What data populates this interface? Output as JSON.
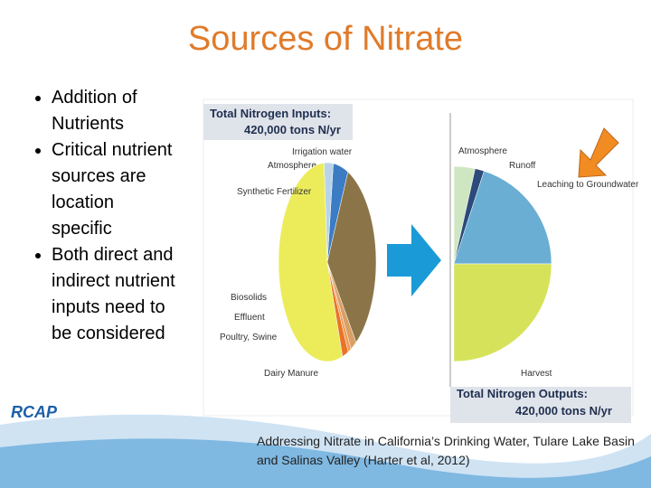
{
  "title": "Sources of Nitrate",
  "bullets": [
    "Addition of Nutrients",
    "Critical nutrient sources are location specific",
    "Both direct and indirect nutrient inputs need to be considered"
  ],
  "logo": "RCAP",
  "caption": "Addressing Nitrate in California’s Drinking Water, Tulare Lake Basin and Salinas Valley (Harter et al, 2012)",
  "chart_data": [
    {
      "type": "pie",
      "title": "Total Nitrogen Inputs:",
      "subtitle": "420,000 tons N/yr",
      "categories": [
        "Irrigation water",
        "Atmosphere",
        "Synthetic Fertilizer",
        "Biosolids",
        "Effluent",
        "Poultry, Swine",
        "Dairy Manure"
      ],
      "values": [
        5,
        3,
        54,
        2,
        1,
        2,
        33
      ],
      "colors": [
        "#3b7cc4",
        "#b8d4e8",
        "#ecec5a",
        "#e8742a",
        "#f29b50",
        "#d9a066",
        "#8b7548"
      ]
    },
    {
      "type": "pie",
      "title": "Total Nitrogen Outputs:",
      "subtitle": "420,000 tons N/yr",
      "categories": [
        "Atmosphere",
        "Runoff",
        "Leaching to Groundwater",
        "Harvest"
      ],
      "values": [
        7,
        3,
        40,
        50
      ],
      "colors": [
        "#cfe6c2",
        "#2c4a7a",
        "#6aaed3",
        "#d6e25a"
      ]
    }
  ]
}
